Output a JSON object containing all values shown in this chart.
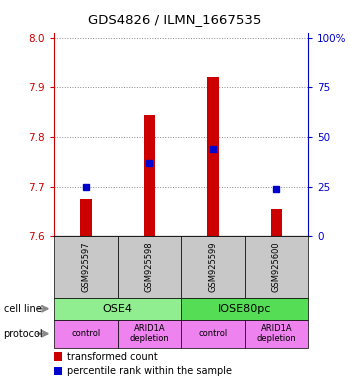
{
  "title": "GDS4826 / ILMN_1667535",
  "samples": [
    "GSM925597",
    "GSM925598",
    "GSM925599",
    "GSM925600"
  ],
  "transformed_counts": [
    7.675,
    7.845,
    7.92,
    7.655
  ],
  "percentile_ranks": [
    7.7,
    7.748,
    7.775,
    7.695
  ],
  "ylim": [
    7.6,
    8.01
  ],
  "yticks_left": [
    7.6,
    7.7,
    7.8,
    7.9,
    8.0
  ],
  "yticks_right_vals": [
    7.6,
    7.7,
    7.8,
    7.9,
    8.0
  ],
  "yticks_right_labels": [
    "0",
    "25",
    "50",
    "75",
    "100%"
  ],
  "bar_bottom": 7.6,
  "cell_line_groups": [
    {
      "label": "OSE4",
      "cols": [
        0,
        1
      ],
      "color": "#90EE90"
    },
    {
      "label": "IOSE80pc",
      "cols": [
        2,
        3
      ],
      "color": "#55DD55"
    }
  ],
  "protocols": [
    "control",
    "ARID1A\ndepletion",
    "control",
    "ARID1A\ndepletion"
  ],
  "protocol_color": "#EE82EE",
  "sample_box_color": "#C8C8C8",
  "bar_color": "#CC0000",
  "dot_color": "#0000CC",
  "left_axis_color": "#CC0000",
  "right_axis_color": "#0000CC",
  "legend_bar_label": "transformed count",
  "legend_dot_label": "percentile rank within the sample"
}
